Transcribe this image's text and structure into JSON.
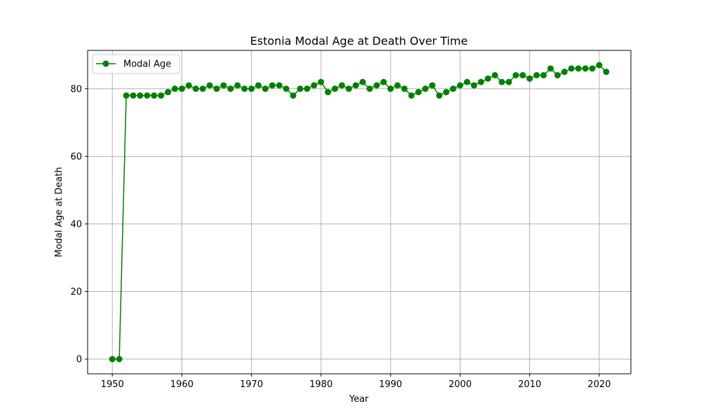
{
  "chart_data": {
    "type": "line",
    "title": "Estonia Modal Age at Death Over Time",
    "xlabel": "Year",
    "ylabel": "Modal Age at Death",
    "xlim": [
      1946.45,
      2024.55
    ],
    "ylim": [
      -4.35,
      91.35
    ],
    "x_ticks": [
      "1950",
      "1960",
      "1970",
      "1980",
      "1990",
      "2000",
      "2010",
      "2020"
    ],
    "y_ticks": [
      "0",
      "20",
      "40",
      "60",
      "80"
    ],
    "grid": true,
    "legend_position": "upper-left",
    "series": [
      {
        "name": "Modal Age",
        "color": "#008000",
        "marker": "circle",
        "x": [
          1950,
          1951,
          1952,
          1953,
          1954,
          1955,
          1956,
          1957,
          1958,
          1959,
          1960,
          1961,
          1962,
          1963,
          1964,
          1965,
          1966,
          1967,
          1968,
          1969,
          1970,
          1971,
          1972,
          1973,
          1974,
          1975,
          1976,
          1977,
          1978,
          1979,
          1980,
          1981,
          1982,
          1983,
          1984,
          1985,
          1986,
          1987,
          1988,
          1989,
          1990,
          1991,
          1992,
          1993,
          1994,
          1995,
          1996,
          1997,
          1998,
          1999,
          2000,
          2001,
          2002,
          2003,
          2004,
          2005,
          2006,
          2007,
          2008,
          2009,
          2010,
          2011,
          2012,
          2013,
          2014,
          2015,
          2016,
          2017,
          2018,
          2019,
          2020,
          2021
        ],
        "values": [
          0,
          0,
          78,
          78,
          78,
          78,
          78,
          78,
          79,
          80,
          80,
          81,
          80,
          80,
          81,
          80,
          81,
          80,
          81,
          80,
          80,
          81,
          80,
          81,
          81,
          80,
          78,
          80,
          80,
          81,
          82,
          79,
          80,
          81,
          80,
          81,
          82,
          80,
          81,
          82,
          80,
          81,
          80,
          78,
          79,
          80,
          81,
          78,
          79,
          80,
          81,
          82,
          81,
          82,
          83,
          84,
          82,
          82,
          84,
          84,
          83,
          84,
          84,
          86,
          84,
          85,
          86,
          86,
          86,
          86,
          87,
          85
        ]
      }
    ]
  }
}
